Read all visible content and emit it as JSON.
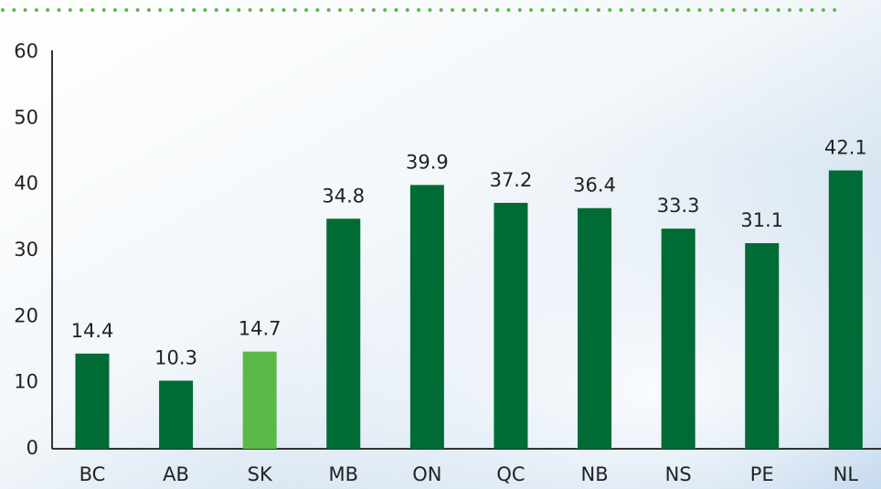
{
  "chart_data": {
    "type": "bar",
    "categories": [
      "BC",
      "AB",
      "SK",
      "MB",
      "ON",
      "QC",
      "NB",
      "NS",
      "PE",
      "NL"
    ],
    "values": [
      14.4,
      10.3,
      14.7,
      34.8,
      39.9,
      37.2,
      36.4,
      33.3,
      31.1,
      42.1
    ],
    "colors": [
      "#006b35",
      "#006b35",
      "#5cb947",
      "#006b35",
      "#006b35",
      "#006b35",
      "#006b35",
      "#006b35",
      "#006b35",
      "#006b35"
    ],
    "ylim": [
      0,
      60
    ],
    "yticks": [
      0,
      10,
      20,
      30,
      40,
      50,
      60
    ],
    "grid": false
  }
}
